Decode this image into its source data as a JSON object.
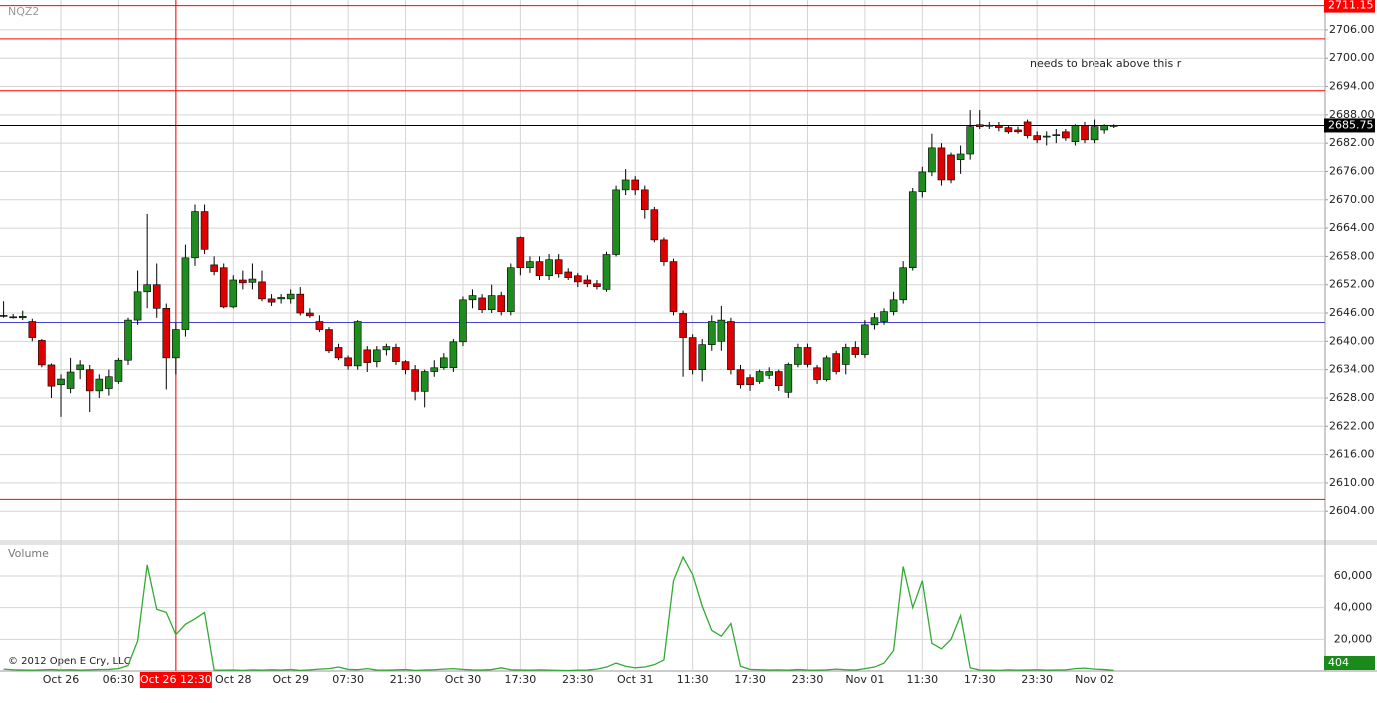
{
  "chart_data": [
    {
      "type": "candlestick",
      "title": "NQZ2",
      "annotation": "needs to break above this r",
      "up_color": "#1f8c1f",
      "down_color": "#dd0000",
      "grid": true,
      "crosshair_index": 18,
      "crosshair_color": "#ff0000",
      "categories": [
        null,
        null,
        null,
        null,
        null,
        null,
        "Oct 26",
        null,
        null,
        null,
        null,
        null,
        "06:30",
        null,
        null,
        null,
        null,
        null,
        "Oct 26 12:30",
        null,
        null,
        null,
        null,
        null,
        "Oct 28",
        null,
        null,
        null,
        null,
        null,
        "Oct 29",
        null,
        null,
        null,
        null,
        null,
        "07:30",
        null,
        null,
        null,
        null,
        null,
        "21:30",
        null,
        null,
        null,
        null,
        null,
        "Oct 30",
        null,
        null,
        null,
        null,
        null,
        "17:30",
        null,
        null,
        null,
        null,
        null,
        "23:30",
        null,
        null,
        null,
        null,
        null,
        "Oct 31",
        null,
        null,
        null,
        null,
        null,
        "11:30",
        null,
        null,
        null,
        null,
        null,
        "17:30",
        null,
        null,
        null,
        null,
        null,
        "23:30",
        null,
        null,
        null,
        null,
        null,
        "Nov 01",
        null,
        null,
        null,
        null,
        null,
        "11:30",
        null,
        null,
        null,
        null,
        null,
        "17:30",
        null,
        null,
        null,
        null,
        null,
        "23:30",
        null,
        null,
        null,
        null,
        null,
        "Nov 02",
        null,
        null
      ],
      "open": [
        2645.5,
        2645.2,
        2645,
        2644.2,
        2640.2,
        2635,
        2630.8,
        2630,
        2634,
        2634,
        2629.5,
        2630,
        2631.5,
        2636,
        2644.5,
        2650.5,
        2652,
        2647,
        2636.5,
        2642.5,
        2657.7,
        2667.5,
        2656.2,
        2655.6,
        2647.3,
        2653,
        2652.5,
        2652.6,
        2649,
        2649,
        2649,
        2650,
        2646,
        2644.2,
        2642.5,
        2638.7,
        2636.5,
        2634.8,
        2638.2,
        2635.7,
        2638.2,
        2638.7,
        2635.7,
        2634,
        2629.4,
        2633.6,
        2634.4,
        2634.4,
        2639.9,
        2648.8,
        2649.2,
        2646.7,
        2649.7,
        2646.3,
        2662,
        2655.6,
        2656.9,
        2653.9,
        2657.3,
        2654.7,
        2653.9,
        2653,
        2652.2,
        2651,
        2658.4,
        2672.1,
        2674.2,
        2672.1,
        2667.9,
        2661.5,
        2656.9,
        2645.9,
        2640.8,
        2634,
        2639.3,
        2640,
        2644.2,
        2634,
        2632.3,
        2631.5,
        2632.8,
        2633.6,
        2629.2,
        2635.1,
        2638.7,
        2634.4,
        2631.9,
        2637.4,
        2635.1,
        2638.7,
        2637.2,
        2643.5,
        2644.2,
        2646.3,
        2648.8,
        2655.6,
        2671.7,
        2675.9,
        2681,
        2679.5,
        2678.5,
        2679.7,
        2685.9,
        2685.7,
        2685.7,
        2685.3,
        2684.8,
        2686.5,
        2683.6,
        2683.3,
        2683.6,
        2684.4,
        2682.3,
        2685.7,
        2682.7,
        2684.8,
        2685.7
      ],
      "high": [
        2648.5,
        2645.8,
        2646.5,
        2644.8,
        2640.5,
        2635.3,
        2633,
        2636.5,
        2636,
        2635,
        2633,
        2634,
        2636.5,
        2645,
        2655,
        2667,
        2656.5,
        2648,
        2644,
        2660.5,
        2669,
        2669,
        2658,
        2656.5,
        2654,
        2655,
        2656.5,
        2655,
        2650,
        2650,
        2651,
        2651.5,
        2647,
        2645.5,
        2643,
        2639.5,
        2637,
        2644.5,
        2639,
        2639,
        2639.5,
        2639.5,
        2636,
        2635,
        2634,
        2636,
        2637.5,
        2640.5,
        2649.5,
        2651,
        2650,
        2652,
        2650.5,
        2656.5,
        2662.2,
        2658,
        2658,
        2658.5,
        2658.5,
        2655.5,
        2654.5,
        2654,
        2653,
        2659,
        2673,
        2676.5,
        2675,
        2673,
        2668.5,
        2662,
        2657.5,
        2646.5,
        2641.5,
        2640.5,
        2645.5,
        2647.5,
        2645,
        2635,
        2633,
        2634,
        2634.5,
        2634,
        2635.5,
        2639.5,
        2639.5,
        2635,
        2637,
        2638,
        2639.5,
        2640,
        2644.5,
        2646,
        2647,
        2650.5,
        2657,
        2672.5,
        2677,
        2684,
        2682,
        2680,
        2681.5,
        2689,
        2689,
        2686.5,
        2686.5,
        2685.8,
        2685.5,
        2687,
        2684.5,
        2684.5,
        2685,
        2685,
        2686,
        2686.5,
        2687,
        2686,
        2686
      ],
      "low": [
        2645,
        2644.8,
        2644.5,
        2640,
        2634.5,
        2628,
        2624,
        2629,
        2632,
        2625,
        2628,
        2628.5,
        2631,
        2635,
        2643.5,
        2647,
        2645,
        2629.8,
        2633,
        2641,
        2656,
        2658.5,
        2654,
        2647,
        2647,
        2651,
        2651,
        2648.5,
        2647.5,
        2648,
        2648,
        2645.5,
        2645,
        2642,
        2637.5,
        2636,
        2634,
        2634,
        2633.5,
        2634.5,
        2637,
        2635,
        2633,
        2627.5,
        2626,
        2632.5,
        2634,
        2633.5,
        2639,
        2647,
        2646,
        2646,
        2645.5,
        2645.5,
        2654,
        2654.5,
        2653,
        2653,
        2653.5,
        2653,
        2651.5,
        2651.5,
        2651,
        2650.5,
        2658,
        2671,
        2671,
        2666,
        2661,
        2656,
        2645.5,
        2632.5,
        2633,
        2631.5,
        2638,
        2638,
        2633,
        2630,
        2629.5,
        2631,
        2632,
        2629.5,
        2628,
        2634.5,
        2634.5,
        2631,
        2631.5,
        2633,
        2633,
        2636.5,
        2636.5,
        2642.5,
        2643.5,
        2645.5,
        2648,
        2655,
        2670.5,
        2675,
        2673,
        2673.5,
        2675.5,
        2678.5,
        2685,
        2685,
        2684.5,
        2684,
        2684,
        2683,
        2682,
        2681.5,
        2682,
        2682.5,
        2681.5,
        2682,
        2682,
        2684,
        2685.2
      ],
      "close": [
        2645.3,
        2645,
        2645.3,
        2640.8,
        2635,
        2630.5,
        2632,
        2633.5,
        2635,
        2629.5,
        2632,
        2632.5,
        2636,
        2644.5,
        2650.5,
        2652,
        2647,
        2636.5,
        2642.5,
        2657.7,
        2667.5,
        2659.5,
        2654.8,
        2647.3,
        2653,
        2652.4,
        2653.2,
        2649,
        2648.3,
        2649.3,
        2650,
        2646,
        2645.4,
        2642.5,
        2638,
        2636.5,
        2634.8,
        2644.2,
        2635.5,
        2638.2,
        2638.9,
        2635.7,
        2634,
        2629.4,
        2633.6,
        2634.4,
        2636.5,
        2639.9,
        2648.8,
        2649.7,
        2646.7,
        2649.7,
        2646.3,
        2655.6,
        2655.6,
        2656.9,
        2653.9,
        2657.3,
        2654.3,
        2653.5,
        2652.6,
        2652.2,
        2651.6,
        2658.4,
        2672.1,
        2674.2,
        2672.1,
        2667.9,
        2661.5,
        2656.9,
        2646.3,
        2640.8,
        2634,
        2639.3,
        2644.2,
        2644.5,
        2634,
        2630.8,
        2630.8,
        2633.6,
        2633.6,
        2630.6,
        2635.1,
        2638.7,
        2635.1,
        2631.9,
        2636.5,
        2633.6,
        2638.7,
        2637.2,
        2643.5,
        2645,
        2646.3,
        2648.8,
        2655.6,
        2671.7,
        2675.9,
        2681,
        2674.2,
        2674.2,
        2679.7,
        2685.5,
        2685.5,
        2685.8,
        2685.3,
        2684.4,
        2684.4,
        2683.6,
        2682.7,
        2683.5,
        2683.8,
        2683.1,
        2685.7,
        2682.7,
        2685.5,
        2685.7,
        2685.75
      ],
      "ylim": [
        2597.9,
        2711.7
      ],
      "yticks": [
        {
          "value": 2706,
          "label": "2706.00"
        },
        {
          "value": 2700,
          "label": "2700.00"
        },
        {
          "value": 2694,
          "label": "2694.00"
        },
        {
          "value": 2688,
          "label": "2688.00"
        },
        {
          "value": 2682,
          "label": "2682.00"
        },
        {
          "value": 2676,
          "label": "2676.00"
        },
        {
          "value": 2670,
          "label": "2670.00"
        },
        {
          "value": 2664,
          "label": "2664.00"
        },
        {
          "value": 2658,
          "label": "2658.00"
        },
        {
          "value": 2652,
          "label": "2652.00"
        },
        {
          "value": 2646,
          "label": "2646.00"
        },
        {
          "value": 2640,
          "label": "2640.00"
        },
        {
          "value": 2634,
          "label": "2634.00"
        },
        {
          "value": 2628,
          "label": "2628.00"
        },
        {
          "value": 2622,
          "label": "2622.00"
        },
        {
          "value": 2616,
          "label": "2616.00"
        },
        {
          "value": 2610,
          "label": "2610.00"
        },
        {
          "value": 2604,
          "label": "2604.00"
        }
      ],
      "hlines": [
        {
          "value": 2711.15,
          "color": "#ff0000",
          "show_label": true
        },
        {
          "value": 2704.1,
          "color": "#ff0000"
        },
        {
          "value": 2693.1,
          "color": "#ff0000"
        },
        {
          "value": 2685.75,
          "color": "#000000",
          "show_label": true
        },
        {
          "value": 2644,
          "color": "#4444cc"
        },
        {
          "value": 2606.5,
          "color": "#ff0000"
        }
      ]
    },
    {
      "type": "line",
      "title": "Volume",
      "credit": "© 2012 Open E Cry, LLC",
      "color": "#33aa33",
      "last_label": true,
      "last_label_color": "#1a8a1a",
      "grid": true,
      "values": [
        1200,
        800,
        600,
        500,
        700,
        900,
        600,
        800,
        500,
        700,
        900,
        1000,
        1500,
        3500,
        19000,
        67000,
        39000,
        37000,
        23000,
        29500,
        33000,
        37000,
        600,
        500,
        600,
        400,
        700,
        500,
        800,
        600,
        900,
        400,
        700,
        1200,
        1500,
        2500,
        1000,
        800,
        1500,
        600,
        500,
        700,
        900,
        400,
        600,
        800,
        1200,
        1500,
        1000,
        700,
        600,
        900,
        2000,
        800,
        600,
        500,
        700,
        500,
        400,
        300,
        500,
        600,
        1200,
        2500,
        5000,
        3000,
        2000,
        2500,
        4000,
        7000,
        57000,
        72000,
        61000,
        41000,
        25600,
        22000,
        30000,
        3000,
        1000,
        800,
        600,
        700,
        500,
        900,
        600,
        500,
        700,
        1200,
        800,
        600,
        1500,
        2500,
        5000,
        13000,
        66000,
        40000,
        57000,
        17500,
        14000,
        20000,
        35000,
        2000,
        600,
        500,
        400,
        700,
        500,
        600,
        800,
        500,
        600,
        700,
        1500,
        1800,
        1200,
        900,
        404
      ],
      "ylim": [
        0,
        79600
      ],
      "yticks": [
        {
          "value": 60000,
          "label": "60,000"
        },
        {
          "value": 40000,
          "label": "40,000"
        },
        {
          "value": 20000,
          "label": "20,000"
        }
      ]
    }
  ]
}
